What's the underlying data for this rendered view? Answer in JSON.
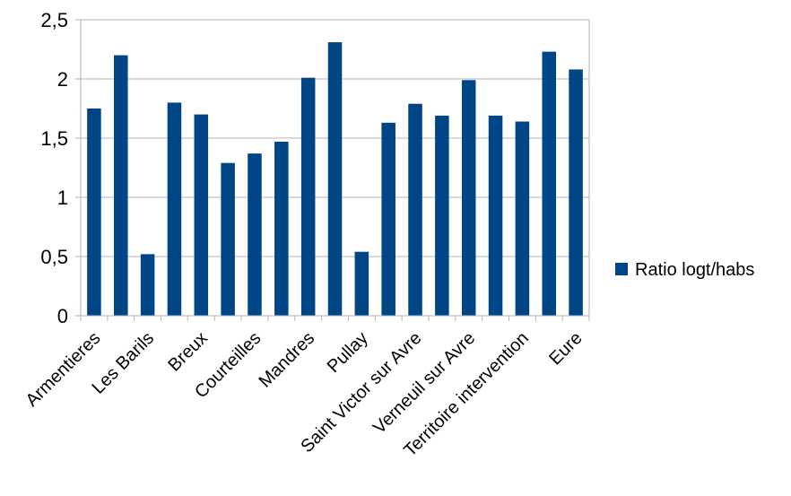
{
  "chart_data": {
    "type": "bar",
    "title": "",
    "xlabel": "",
    "ylabel": "",
    "ylim": [
      0,
      2.5
    ],
    "yticks": [
      "0",
      "0,5",
      "1",
      "1,5",
      "2",
      "2,5"
    ],
    "grid": true,
    "legend_position": "right",
    "categories": [
      "Armentieres",
      "",
      "Les Barils",
      "",
      "Breux",
      "",
      "Courteilles",
      "",
      "Mandres",
      "",
      "Pullay",
      "",
      "Saint Victor sur Avre",
      "",
      "Verneuil sur Avre",
      "",
      "Territoire intervention",
      "",
      "Eure"
    ],
    "series": [
      {
        "name": "Ratio logt/habs",
        "color": "#004586",
        "values": [
          1.75,
          2.2,
          0.52,
          1.8,
          1.7,
          1.29,
          1.37,
          1.47,
          2.01,
          2.31,
          0.54,
          1.63,
          1.79,
          1.69,
          1.99,
          1.69,
          1.64,
          2.23,
          2.08
        ]
      }
    ]
  }
}
